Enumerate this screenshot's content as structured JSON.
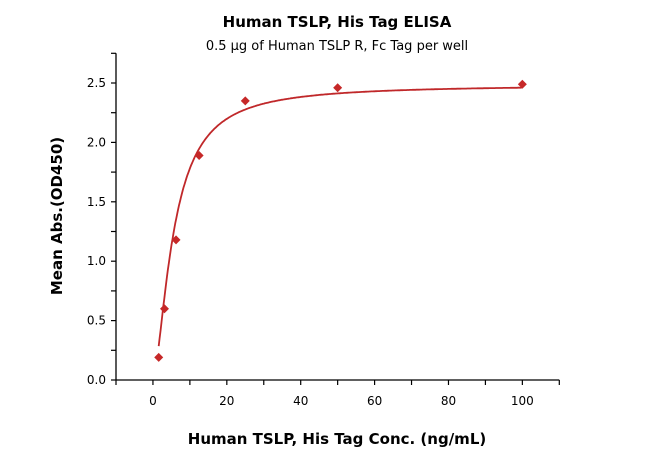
{
  "chart_data": {
    "type": "scatter",
    "title": "Human TSLP, His Tag ELISA",
    "subtitle": "0.5 µg of Human TSLP R, Fc Tag per well",
    "xlabel": "Human TSLP, His Tag Conc. (ng/mL)",
    "ylabel": "Mean Abs.(OD450)",
    "xlim": [
      -10,
      110
    ],
    "ylim": [
      0,
      2.75
    ],
    "xticks": [
      "0",
      "20",
      "40",
      "60",
      "80",
      "100"
    ],
    "yticks": [
      "0.0",
      "0.5",
      "1.0",
      "1.5",
      "2.0",
      "2.5"
    ],
    "grid": false,
    "colors": {
      "series": "#c62828",
      "curve": "#c0282a"
    },
    "series": [
      {
        "x": [
          1.5625,
          3.125,
          6.25,
          12.5,
          25,
          50,
          100
        ],
        "y": [
          0.19,
          0.6,
          1.18,
          1.89,
          2.35,
          2.46,
          2.49
        ],
        "marker": "diamond",
        "fit_curve": true
      }
    ]
  }
}
